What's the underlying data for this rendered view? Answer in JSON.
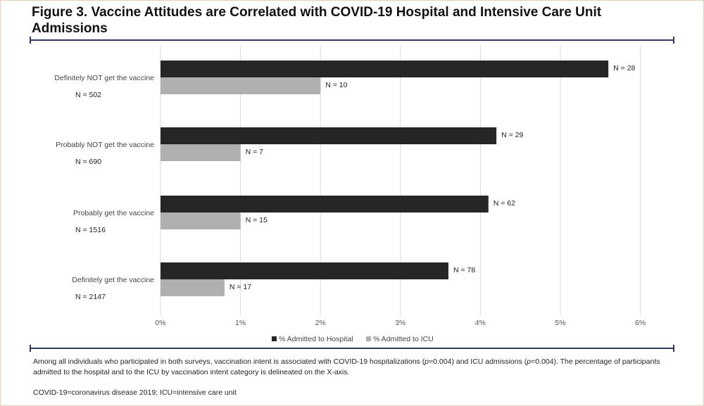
{
  "figure": {
    "title": "Figure 3. Vaccine Attitudes are Correlated with COVID-19 Hospital and Intensive Care Unit Admissions"
  },
  "caption": {
    "part1": "Among all individuals who participated in both surveys, vaccination intent is associated with COVID-19 hospitalizations (",
    "p1": "p",
    "part2": "=0.004) and ICU admissions (",
    "p2": "p",
    "part3": "=0.004). The percentage of participants admitted to the hospital and to the ICU by vaccination intent category is delineated on the X-axis."
  },
  "footnote": "COVID-19=coronavirus disease 2019; ICU=intensive care unit",
  "colors": {
    "hospital": "#262626",
    "icu": "#b0b0b0",
    "grid": "#d9d9d9",
    "rule": "#2b3a67"
  },
  "chart_data": {
    "type": "bar",
    "orientation": "horizontal",
    "categories": [
      "Definitely NOT get the vaccine",
      "Probably NOT get the vaccine",
      "Probably get the vaccine",
      "Definitely get the vaccine"
    ],
    "category_n": [
      "N = 502",
      "N = 690",
      "N = 1516",
      "N = 2147"
    ],
    "series": [
      {
        "name": "% Admitted to Hospital",
        "values": [
          5.6,
          4.2,
          4.1,
          3.6
        ],
        "labels": [
          "N = 28",
          "N = 29",
          "N = 62",
          "N = 78"
        ]
      },
      {
        "name": "% Admitted to ICU",
        "values": [
          2.0,
          1.0,
          1.0,
          0.8
        ],
        "labels": [
          "N = 10",
          "N = 7",
          "N = 15",
          "N = 17"
        ]
      }
    ],
    "xlim": [
      0,
      6
    ],
    "xticks": [
      "0%",
      "1%",
      "2%",
      "3%",
      "4%",
      "5%",
      "6%"
    ],
    "grid": true,
    "legend_position": "bottom"
  }
}
